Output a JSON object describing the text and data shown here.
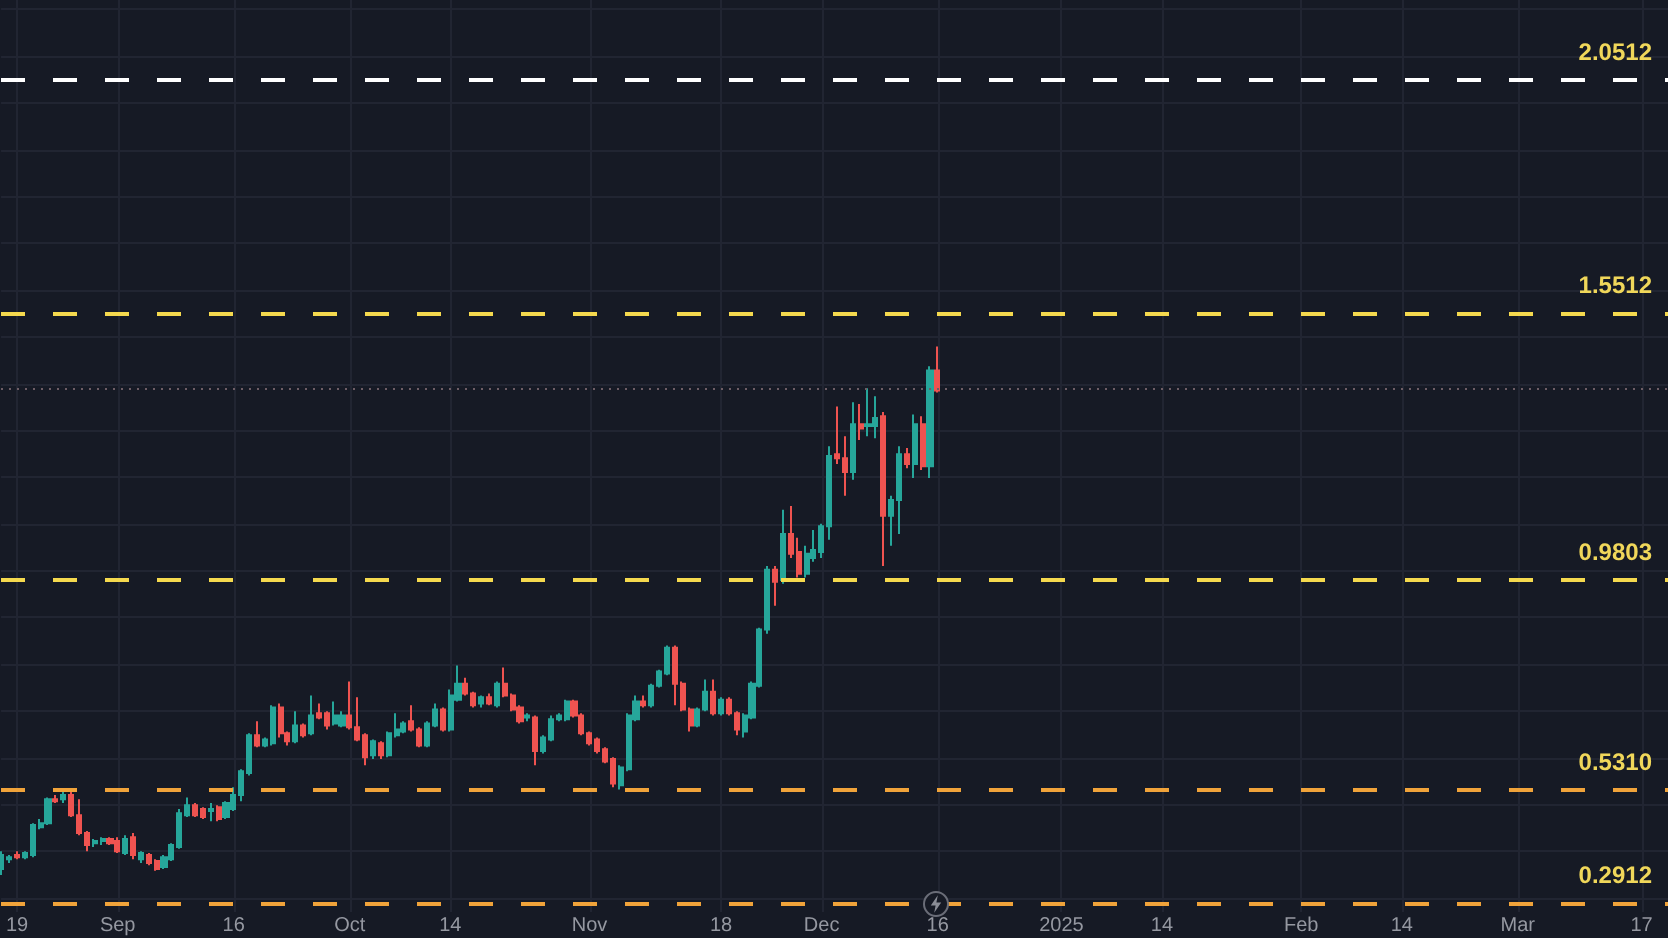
{
  "chart_data": {
    "type": "candlestick",
    "x": [
      "2024-08-17",
      "2024-08-18",
      "2024-08-19",
      "2024-08-20",
      "2024-08-21",
      "2024-08-22",
      "2024-08-23",
      "2024-08-24",
      "2024-08-25",
      "2024-08-26",
      "2024-08-27",
      "2024-08-28",
      "2024-08-29",
      "2024-08-30",
      "2024-08-31",
      "2024-09-01",
      "2024-09-02",
      "2024-09-03",
      "2024-09-04",
      "2024-09-05",
      "2024-09-06",
      "2024-09-07",
      "2024-09-08",
      "2024-09-09",
      "2024-09-10",
      "2024-09-11",
      "2024-09-12",
      "2024-09-13",
      "2024-09-14",
      "2024-09-15",
      "2024-09-16",
      "2024-09-17",
      "2024-09-18",
      "2024-09-19",
      "2024-09-20",
      "2024-09-21",
      "2024-09-22",
      "2024-09-23",
      "2024-09-24",
      "2024-09-25",
      "2024-09-26",
      "2024-09-27",
      "2024-09-28",
      "2024-09-29",
      "2024-09-30",
      "2024-10-01",
      "2024-10-02",
      "2024-10-03",
      "2024-10-04",
      "2024-10-05",
      "2024-10-06",
      "2024-10-07",
      "2024-10-08",
      "2024-10-09",
      "2024-10-10",
      "2024-10-11",
      "2024-10-12",
      "2024-10-13",
      "2024-10-14",
      "2024-10-15",
      "2024-10-16",
      "2024-10-17",
      "2024-10-18",
      "2024-10-19",
      "2024-10-20",
      "2024-10-21",
      "2024-10-22",
      "2024-10-23",
      "2024-10-24",
      "2024-10-25",
      "2024-10-26",
      "2024-10-27",
      "2024-10-28",
      "2024-10-29",
      "2024-10-30",
      "2024-10-31",
      "2024-11-01",
      "2024-11-02",
      "2024-11-03",
      "2024-11-04",
      "2024-11-05",
      "2024-11-06",
      "2024-11-07",
      "2024-11-08",
      "2024-11-09",
      "2024-11-10",
      "2024-11-11",
      "2024-11-12",
      "2024-11-13",
      "2024-11-14",
      "2024-11-15",
      "2024-11-16",
      "2024-11-17",
      "2024-11-18",
      "2024-11-19",
      "2024-11-20",
      "2024-11-21",
      "2024-11-22",
      "2024-11-23",
      "2024-11-24",
      "2024-11-25",
      "2024-11-26",
      "2024-11-27",
      "2024-11-28",
      "2024-11-29",
      "2024-11-30",
      "2024-12-01",
      "2024-12-02",
      "2024-12-03",
      "2024-12-04",
      "2024-12-05",
      "2024-12-06",
      "2024-12-07",
      "2024-12-08",
      "2024-12-09",
      "2024-12-10",
      "2024-12-11",
      "2024-12-12",
      "2024-12-13",
      "2024-12-14",
      "2024-12-15",
      "2024-12-16"
    ],
    "ohlc": [
      [
        0.362,
        0.4,
        0.349,
        0.392
      ],
      [
        0.383,
        0.392,
        0.375,
        0.387
      ],
      [
        0.392,
        0.4,
        0.383,
        0.387
      ],
      [
        0.387,
        0.4,
        0.383,
        0.396
      ],
      [
        0.392,
        0.46,
        0.387,
        0.456
      ],
      [
        0.451,
        0.469,
        0.447,
        0.46
      ],
      [
        0.46,
        0.515,
        0.456,
        0.511
      ],
      [
        0.511,
        0.52,
        0.503,
        0.507
      ],
      [
        0.511,
        0.528,
        0.503,
        0.52
      ],
      [
        0.52,
        0.532,
        0.473,
        0.477
      ],
      [
        0.477,
        0.511,
        0.434,
        0.439
      ],
      [
        0.439,
        0.443,
        0.4,
        0.413
      ],
      [
        0.417,
        0.426,
        0.409,
        0.422
      ],
      [
        0.422,
        0.43,
        0.413,
        0.426
      ],
      [
        0.426,
        0.43,
        0.413,
        0.417
      ],
      [
        0.422,
        0.43,
        0.396,
        0.4
      ],
      [
        0.396,
        0.434,
        0.392,
        0.426
      ],
      [
        0.43,
        0.439,
        0.383,
        0.392
      ],
      [
        0.383,
        0.4,
        0.375,
        0.396
      ],
      [
        0.392,
        0.396,
        0.37,
        0.375
      ],
      [
        0.379,
        0.383,
        0.358,
        0.362
      ],
      [
        0.366,
        0.392,
        0.362,
        0.387
      ],
      [
        0.383,
        0.417,
        0.379,
        0.413
      ],
      [
        0.409,
        0.49,
        0.405,
        0.481
      ],
      [
        0.477,
        0.515,
        0.473,
        0.498
      ],
      [
        0.498,
        0.503,
        0.473,
        0.477
      ],
      [
        0.49,
        0.494,
        0.469,
        0.473
      ],
      [
        0.486,
        0.503,
        0.464,
        0.49
      ],
      [
        0.494,
        0.498,
        0.464,
        0.469
      ],
      [
        0.473,
        0.507,
        0.469,
        0.503
      ],
      [
        0.49,
        0.537,
        0.486,
        0.52
      ],
      [
        0.52,
        0.575,
        0.507,
        0.571
      ],
      [
        0.567,
        0.652,
        0.562,
        0.648
      ],
      [
        0.648,
        0.678,
        0.622,
        0.626
      ],
      [
        0.626,
        0.643,
        0.622,
        0.639
      ],
      [
        0.631,
        0.712,
        0.626,
        0.707
      ],
      [
        0.707,
        0.716,
        0.643,
        0.652
      ],
      [
        0.652,
        0.656,
        0.626,
        0.635
      ],
      [
        0.635,
        0.699,
        0.631,
        0.669
      ],
      [
        0.669,
        0.673,
        0.643,
        0.648
      ],
      [
        0.652,
        0.733,
        0.648,
        0.69
      ],
      [
        0.695,
        0.716,
        0.682,
        0.686
      ],
      [
        0.695,
        0.699,
        0.66,
        0.669
      ],
      [
        0.673,
        0.72,
        0.669,
        0.69
      ],
      [
        0.669,
        0.699,
        0.665,
        0.69
      ],
      [
        0.69,
        0.763,
        0.66,
        0.665
      ],
      [
        0.665,
        0.729,
        0.635,
        0.639
      ],
      [
        0.648,
        0.652,
        0.584,
        0.601
      ],
      [
        0.605,
        0.639,
        0.597,
        0.635
      ],
      [
        0.631,
        0.635,
        0.597,
        0.605
      ],
      [
        0.605,
        0.656,
        0.601,
        0.652
      ],
      [
        0.648,
        0.695,
        0.643,
        0.66
      ],
      [
        0.656,
        0.678,
        0.652,
        0.673
      ],
      [
        0.678,
        0.712,
        0.656,
        0.66
      ],
      [
        0.66,
        0.665,
        0.622,
        0.626
      ],
      [
        0.626,
        0.678,
        0.622,
        0.673
      ],
      [
        0.669,
        0.716,
        0.665,
        0.703
      ],
      [
        0.703,
        0.707,
        0.656,
        0.66
      ],
      [
        0.66,
        0.746,
        0.656,
        0.733
      ],
      [
        0.724,
        0.797,
        0.72,
        0.758
      ],
      [
        0.758,
        0.771,
        0.733,
        0.737
      ],
      [
        0.737,
        0.741,
        0.707,
        0.712
      ],
      [
        0.716,
        0.733,
        0.707,
        0.729
      ],
      [
        0.729,
        0.737,
        0.712,
        0.716
      ],
      [
        0.712,
        0.763,
        0.707,
        0.758
      ],
      [
        0.758,
        0.793,
        0.729,
        0.733
      ],
      [
        0.733,
        0.737,
        0.699,
        0.703
      ],
      [
        0.707,
        0.712,
        0.673,
        0.678
      ],
      [
        0.686,
        0.695,
        0.678,
        0.69
      ],
      [
        0.686,
        0.69,
        0.584,
        0.614
      ],
      [
        0.614,
        0.648,
        0.609,
        0.643
      ],
      [
        0.639,
        0.69,
        0.635,
        0.682
      ],
      [
        0.682,
        0.695,
        0.678,
        0.69
      ],
      [
        0.682,
        0.724,
        0.678,
        0.72
      ],
      [
        0.72,
        0.724,
        0.686,
        0.69
      ],
      [
        0.69,
        0.695,
        0.648,
        0.652
      ],
      [
        0.652,
        0.656,
        0.626,
        0.631
      ],
      [
        0.639,
        0.643,
        0.609,
        0.614
      ],
      [
        0.618,
        0.622,
        0.588,
        0.592
      ],
      [
        0.597,
        0.601,
        0.537,
        0.545
      ],
      [
        0.541,
        0.584,
        0.532,
        0.579
      ],
      [
        0.575,
        0.695,
        0.571,
        0.69
      ],
      [
        0.682,
        0.733,
        0.678,
        0.72
      ],
      [
        0.72,
        0.733,
        0.707,
        0.712
      ],
      [
        0.712,
        0.758,
        0.707,
        0.754
      ],
      [
        0.754,
        0.788,
        0.75,
        0.784
      ],
      [
        0.78,
        0.84,
        0.776,
        0.835
      ],
      [
        0.835,
        0.84,
        0.712,
        0.758
      ],
      [
        0.758,
        0.763,
        0.699,
        0.703
      ],
      [
        0.703,
        0.707,
        0.656,
        0.669
      ],
      [
        0.669,
        0.707,
        0.665,
        0.703
      ],
      [
        0.703,
        0.767,
        0.699,
        0.741
      ],
      [
        0.741,
        0.767,
        0.69,
        0.695
      ],
      [
        0.695,
        0.729,
        0.69,
        0.724
      ],
      [
        0.724,
        0.729,
        0.69,
        0.695
      ],
      [
        0.695,
        0.699,
        0.648,
        0.66
      ],
      [
        0.656,
        0.695,
        0.643,
        0.69
      ],
      [
        0.686,
        0.763,
        0.682,
        0.758
      ],
      [
        0.754,
        0.878,
        0.75,
        0.874
      ],
      [
        0.874,
        1.01,
        0.865,
        1.002
      ],
      [
        1.002,
        1.01,
        0.925,
        0.976
      ],
      [
        0.98,
        1.13,
        0.972,
        1.078
      ],
      [
        1.078,
        1.138,
        1.027,
        1.036
      ],
      [
        1.04,
        1.07,
        0.985,
        0.993
      ],
      [
        0.993,
        1.053,
        0.985,
        1.036
      ],
      [
        1.027,
        1.087,
        1.019,
        1.044
      ],
      [
        1.04,
        1.1,
        1.027,
        1.095
      ],
      [
        1.095,
        1.266,
        1.066,
        1.245
      ],
      [
        1.249,
        1.351,
        1.228,
        1.24
      ],
      [
        1.24,
        1.287,
        1.16,
        1.211
      ],
      [
        1.211,
        1.36,
        1.194,
        1.313
      ],
      [
        1.313,
        1.356,
        1.279,
        1.304
      ],
      [
        1.309,
        1.39,
        1.287,
        1.313
      ],
      [
        1.309,
        1.373,
        1.283,
        1.326
      ],
      [
        1.33,
        1.339,
        1.01,
        1.117
      ],
      [
        1.117,
        1.16,
        1.053,
        1.151
      ],
      [
        1.151,
        1.266,
        1.078,
        1.249
      ],
      [
        1.249,
        1.262,
        1.219,
        1.228
      ],
      [
        1.228,
        1.334,
        1.198,
        1.313
      ],
      [
        1.313,
        1.33,
        1.215,
        1.223
      ],
      [
        1.223,
        1.437,
        1.198,
        1.428
      ],
      [
        1.428,
        1.479,
        1.381,
        1.385
      ]
    ],
    "colors": [
      "#26a69a",
      "#26a69a",
      "#ef5350",
      "#26a69a",
      "#26a69a",
      "#26a69a",
      "#26a69a",
      "#ef5350",
      "#26a69a",
      "#ef5350",
      "#ef5350",
      "#ef5350",
      "#26a69a",
      "#26a69a",
      "#ef5350",
      "#ef5350",
      "#26a69a",
      "#ef5350",
      "#26a69a",
      "#ef5350",
      "#ef5350",
      "#26a69a",
      "#26a69a",
      "#26a69a",
      "#26a69a",
      "#ef5350",
      "#ef5350",
      "#26a69a",
      "#ef5350",
      "#26a69a",
      "#26a69a",
      "#26a69a",
      "#26a69a",
      "#ef5350",
      "#26a69a",
      "#26a69a",
      "#ef5350",
      "#ef5350",
      "#26a69a",
      "#ef5350",
      "#26a69a",
      "#ef5350",
      "#ef5350",
      "#26a69a",
      "#26a69a",
      "#ef5350",
      "#ef5350",
      "#ef5350",
      "#26a69a",
      "#ef5350",
      "#26a69a",
      "#26a69a",
      "#26a69a",
      "#ef5350",
      "#ef5350",
      "#26a69a",
      "#26a69a",
      "#ef5350",
      "#26a69a",
      "#26a69a",
      "#ef5350",
      "#ef5350",
      "#26a69a",
      "#ef5350",
      "#26a69a",
      "#ef5350",
      "#ef5350",
      "#ef5350",
      "#26a69a",
      "#ef5350",
      "#26a69a",
      "#26a69a",
      "#26a69a",
      "#26a69a",
      "#ef5350",
      "#ef5350",
      "#ef5350",
      "#ef5350",
      "#ef5350",
      "#ef5350",
      "#26a69a",
      "#26a69a",
      "#26a69a",
      "#ef5350",
      "#26a69a",
      "#26a69a",
      "#26a69a",
      "#ef5350",
      "#ef5350",
      "#ef5350",
      "#26a69a",
      "#26a69a",
      "#ef5350",
      "#26a69a",
      "#ef5350",
      "#ef5350",
      "#26a69a",
      "#26a69a",
      "#26a69a",
      "#26a69a",
      "#ef5350",
      "#26a69a",
      "#ef5350",
      "#ef5350",
      "#26a69a",
      "#26a69a",
      "#26a69a",
      "#26a69a",
      "#ef5350",
      "#ef5350",
      "#26a69a",
      "#ef5350",
      "#26a69a",
      "#26a69a",
      "#ef5350",
      "#26a69a",
      "#26a69a",
      "#ef5350",
      "#26a69a",
      "#ef5350",
      "#26a69a",
      "#ef5350"
    ],
    "xlim": [
      "2024-08-16T22:00",
      "2025-03-20T10:00"
    ],
    "ylim": [
      0.27,
      2.22
    ],
    "xticks": [
      {
        "value": "2024-08-19",
        "label": "19"
      },
      {
        "value": "2024-09-01",
        "label": "Sep"
      },
      {
        "value": "2024-09-16",
        "label": "16"
      },
      {
        "value": "2024-10-01",
        "label": "Oct"
      },
      {
        "value": "2024-10-14",
        "label": "14"
      },
      {
        "value": "2024-11-01",
        "label": "Nov"
      },
      {
        "value": "2024-11-18",
        "label": "18"
      },
      {
        "value": "2024-12-01",
        "label": "Dec"
      },
      {
        "value": "2024-12-16",
        "label": "16"
      },
      {
        "value": "2025-01-01",
        "label": "2025"
      },
      {
        "value": "2025-01-14",
        "label": "14"
      },
      {
        "value": "2025-02-01",
        "label": "Feb"
      },
      {
        "value": "2025-02-14",
        "label": "14"
      },
      {
        "value": "2025-03-01",
        "label": "Mar"
      },
      {
        "value": "2025-03-17",
        "label": "17"
      }
    ],
    "yticks": [
      {
        "value": 0.3,
        "label": null
      },
      {
        "value": 0.4,
        "label": null
      },
      {
        "value": 0.5,
        "label": null
      },
      {
        "value": 0.6,
        "label": null
      },
      {
        "value": 0.7,
        "label": null
      },
      {
        "value": 0.8,
        "label": null
      },
      {
        "value": 0.9,
        "label": null
      },
      {
        "value": 1.0,
        "label": null
      },
      {
        "value": 1.1,
        "label": null
      },
      {
        "value": 1.2,
        "label": null
      },
      {
        "value": 1.3,
        "label": null
      },
      {
        "value": 1.4,
        "label": null
      },
      {
        "value": 1.5,
        "label": null
      },
      {
        "value": 1.6,
        "label": null
      },
      {
        "value": 1.7,
        "label": null
      },
      {
        "value": 1.8,
        "label": null
      },
      {
        "value": 1.9,
        "label": null
      },
      {
        "value": 2.0,
        "label": null
      },
      {
        "value": 2.1,
        "label": null
      },
      {
        "value": 2.2,
        "label": null
      }
    ],
    "grid": true,
    "tick_labels": "x",
    "ref_lines": [
      {
        "axis": "y",
        "value": 2.0512,
        "label": "2.0512",
        "color": "#ffffff",
        "line_style": "dashed"
      },
      {
        "axis": "y",
        "value": 1.5512,
        "label": "1.5512",
        "color": "#f5d94e",
        "line_style": "dashed"
      },
      {
        "axis": "y",
        "value": 1.385,
        "color": "#6e5e66",
        "line_style": "dotted"
      },
      {
        "axis": "y",
        "value": 0.9803,
        "label": "0.9803",
        "color": "#f5d94e",
        "line_style": "dashed"
      },
      {
        "axis": "y",
        "value": 0.531,
        "label": "0.5310",
        "color": "#f0a33a",
        "line_style": "dashed"
      },
      {
        "axis": "y",
        "value": 0.2912,
        "label": "0.2912",
        "color": "#f0a33a",
        "line_style": "dashed"
      }
    ]
  }
}
